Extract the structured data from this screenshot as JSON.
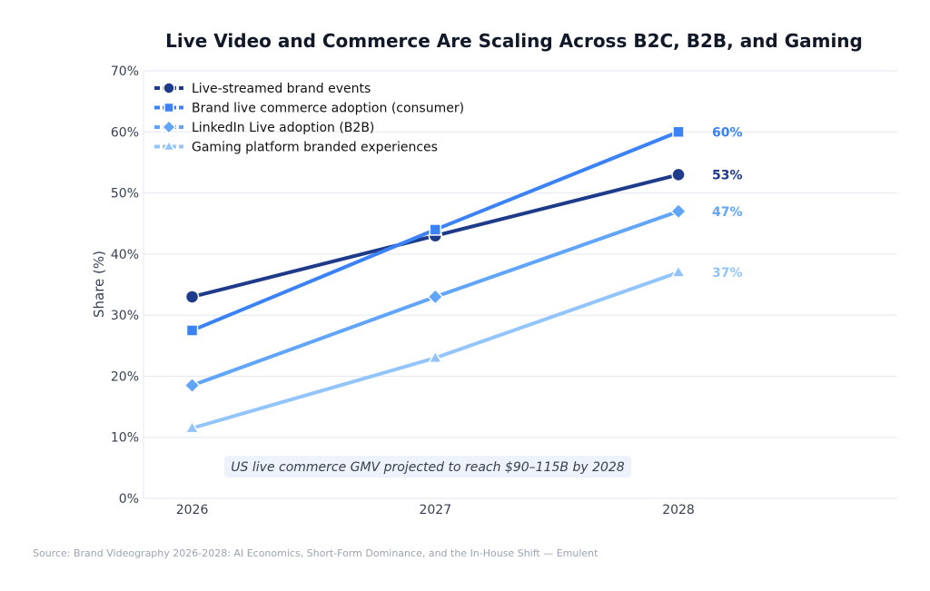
{
  "chart_data": {
    "type": "line",
    "title": "Live Video and Commerce Are Scaling Across B2C, B2B, and Gaming",
    "xlabel": "",
    "ylabel": "Share (%)",
    "x": [
      2026,
      2027,
      2028
    ],
    "xlim": [
      2025.8,
      2028.9
    ],
    "ylim": [
      0,
      70
    ],
    "yticks": [
      0,
      10,
      20,
      30,
      40,
      50,
      60,
      70
    ],
    "ytick_labels": [
      "0%",
      "10%",
      "20%",
      "30%",
      "40%",
      "50%",
      "60%",
      "70%"
    ],
    "xtick_labels": [
      "2026",
      "2027",
      "2028"
    ],
    "grid": "horizontal",
    "legend_position": "top-left",
    "series": [
      {
        "name": "Live-streamed brand events",
        "values": [
          33,
          43,
          53
        ],
        "color": "#1e3a8a",
        "marker": "circle",
        "end_label": "53%"
      },
      {
        "name": "Brand live commerce adoption (consumer)",
        "values": [
          27.5,
          44,
          60
        ],
        "color": "#3b82f6",
        "marker": "square",
        "end_label": "60%"
      },
      {
        "name": "LinkedIn Live adoption (B2B)",
        "values": [
          18.5,
          33,
          47
        ],
        "color": "#60a5fa",
        "marker": "diamond",
        "end_label": "47%"
      },
      {
        "name": "Gaming platform branded experiences",
        "values": [
          11.5,
          23,
          37
        ],
        "color": "#93c5fd",
        "marker": "triangle",
        "end_label": "37%"
      }
    ],
    "annotation": "US live commerce GMV projected to reach $90–115B by 2028",
    "source": "Source: Brand Videography 2026-2028: AI Economics, Short-Form Dominance, and the In-House Shift — Emulent"
  }
}
